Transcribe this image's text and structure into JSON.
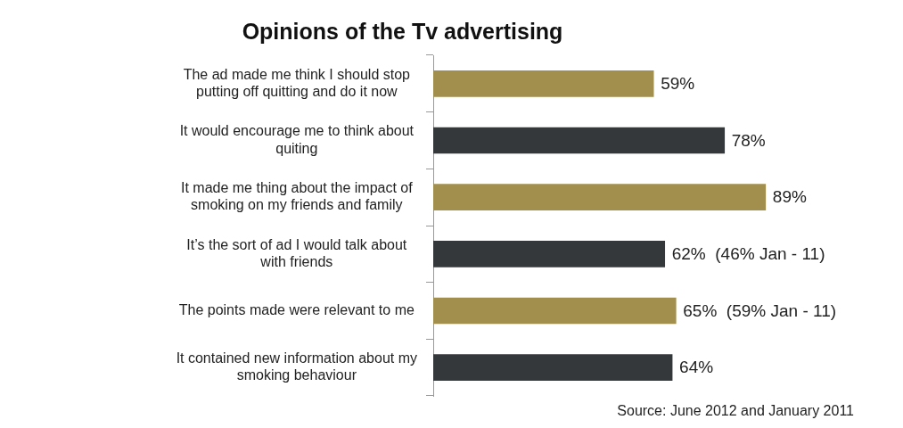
{
  "chart_data": {
    "type": "bar",
    "orientation": "horizontal",
    "title": "Opinions of the Tv advertising",
    "categories": [
      "The ad made me think I should stop putting off quitting and do it now",
      "It would encourage me to think about quiting",
      "It made me thing about the impact of smoking on my friends and family",
      "It’s the sort of ad I would talk about with friends",
      "The points made were relevant to me",
      "It contained new information about my smoking behaviour"
    ],
    "values": [
      59,
      78,
      89,
      62,
      65,
      64
    ],
    "colors": [
      "#a28f4e",
      "#35383b",
      "#a28f4e",
      "#35383b",
      "#a28f4e",
      "#35383b"
    ],
    "value_labels": [
      "59%",
      "78%",
      "89%",
      "62%  (46% Jan - 11)",
      "65%  (59% Jan - 11)",
      "64%"
    ],
    "tick_labels": "y",
    "grid": false,
    "legend": false,
    "annotations": [
      "Source: June 2012 and January 2011"
    ]
  }
}
